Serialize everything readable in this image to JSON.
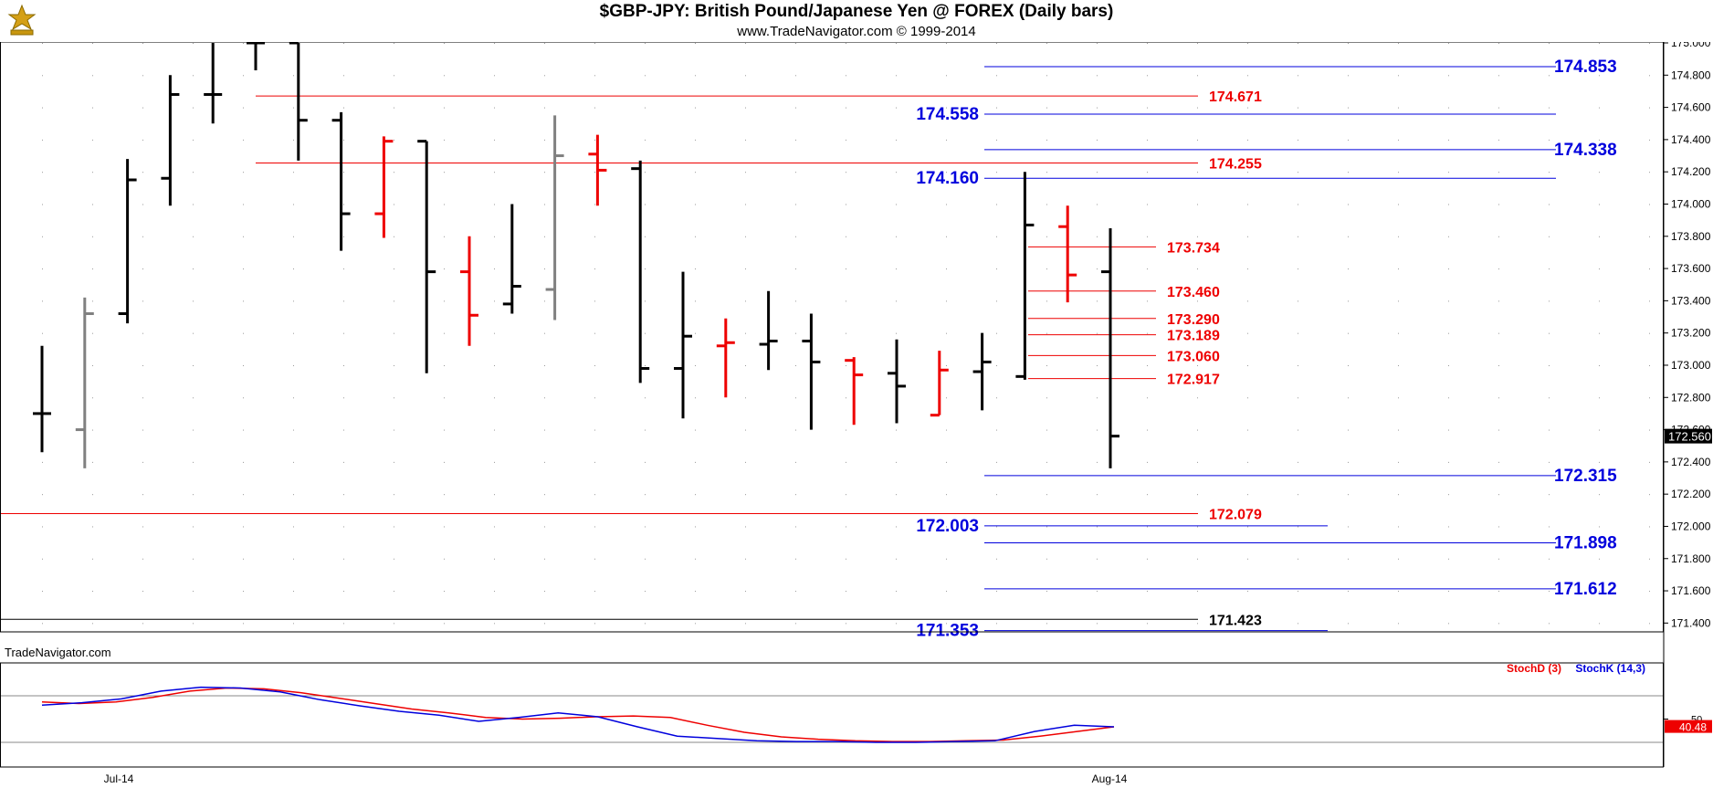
{
  "header": {
    "title": "$GBP-JPY:  British Pound/Japanese Yen @ FOREX  (Daily bars)",
    "subtitle": "www.TradeNavigator.com © 1999-2014"
  },
  "watermark": "TradeNavigator.com",
  "chart_data": {
    "type": "ohlc",
    "price_axis": {
      "min": 171.3,
      "max": 175.0,
      "ticks": [
        "175.000",
        "174.800",
        "174.600",
        "174.400",
        "174.200",
        "174.000",
        "173.800",
        "173.600",
        "173.400",
        "173.200",
        "173.000",
        "172.800",
        "172.600",
        "172.400",
        "172.200",
        "172.000",
        "171.800",
        "171.600",
        "171.400"
      ]
    },
    "last_price": "172.560",
    "x_labels": [
      {
        "label": "Jul-14",
        "bar": 2
      },
      {
        "label": "Aug-14",
        "bar": 26
      }
    ],
    "bars": [
      {
        "o": 172.7,
        "h": 173.12,
        "l": 172.46,
        "c": 172.7,
        "color": "#000000"
      },
      {
        "o": 172.6,
        "h": 173.42,
        "l": 172.36,
        "c": 173.32,
        "color": "#808080"
      },
      {
        "o": 173.32,
        "h": 174.28,
        "l": 173.26,
        "c": 174.15,
        "color": "#000000"
      },
      {
        "o": 174.16,
        "h": 174.8,
        "l": 173.99,
        "c": 174.68,
        "color": "#000000"
      },
      {
        "o": 174.68,
        "h": 175.05,
        "l": 174.5,
        "c": 174.68,
        "color": "#000000"
      },
      {
        "o": 175.0,
        "h": 175.1,
        "l": 174.83,
        "c": 175.0,
        "color": "#000000"
      },
      {
        "o": 175.0,
        "h": 175.05,
        "l": 174.27,
        "c": 174.52,
        "color": "#000000"
      },
      {
        "o": 174.52,
        "h": 174.57,
        "l": 173.71,
        "c": 173.94,
        "color": "#000000"
      },
      {
        "o": 173.94,
        "h": 174.42,
        "l": 173.79,
        "c": 174.39,
        "color": "#ee0000"
      },
      {
        "o": 174.39,
        "h": 174.39,
        "l": 172.95,
        "c": 173.58,
        "color": "#000000"
      },
      {
        "o": 173.58,
        "h": 173.8,
        "l": 173.12,
        "c": 173.31,
        "color": "#ee0000"
      },
      {
        "o": 173.38,
        "h": 174.0,
        "l": 173.32,
        "c": 173.49,
        "color": "#000000"
      },
      {
        "o": 173.47,
        "h": 174.55,
        "l": 173.28,
        "c": 174.3,
        "color": "#808080"
      },
      {
        "o": 174.31,
        "h": 174.43,
        "l": 173.99,
        "c": 174.21,
        "color": "#ee0000"
      },
      {
        "o": 174.22,
        "h": 174.27,
        "l": 172.89,
        "c": 172.98,
        "color": "#000000"
      },
      {
        "o": 172.98,
        "h": 173.58,
        "l": 172.67,
        "c": 173.18,
        "color": "#000000"
      },
      {
        "o": 173.12,
        "h": 173.29,
        "l": 172.8,
        "c": 173.14,
        "color": "#ee0000"
      },
      {
        "o": 173.13,
        "h": 173.46,
        "l": 172.97,
        "c": 173.15,
        "color": "#000000"
      },
      {
        "o": 173.15,
        "h": 173.32,
        "l": 172.6,
        "c": 173.02,
        "color": "#000000"
      },
      {
        "o": 173.03,
        "h": 173.05,
        "l": 172.63,
        "c": 172.94,
        "color": "#ee0000"
      },
      {
        "o": 172.95,
        "h": 173.16,
        "l": 172.64,
        "c": 172.87,
        "color": "#000000"
      },
      {
        "o": 172.69,
        "h": 173.09,
        "l": 172.69,
        "c": 172.97,
        "color": "#ee0000"
      },
      {
        "o": 172.96,
        "h": 173.2,
        "l": 172.72,
        "c": 173.02,
        "color": "#000000"
      },
      {
        "o": 172.93,
        "h": 174.2,
        "l": 172.91,
        "c": 173.87,
        "color": "#000000"
      },
      {
        "o": 173.86,
        "h": 173.99,
        "l": 173.39,
        "c": 173.56,
        "color": "#ee0000"
      },
      {
        "o": 173.58,
        "h": 173.85,
        "l": 172.36,
        "c": 172.56,
        "color": "#000000"
      }
    ],
    "levels": [
      {
        "price": 174.853,
        "label": "174.853",
        "color": "#0000dd",
        "x1": 1078,
        "x2": 1704,
        "label_side": "right",
        "label_x": 1702
      },
      {
        "price": 174.671,
        "label": "174.671",
        "color": "#ee0000",
        "x1": 280,
        "x2": 1312,
        "label_side": "right",
        "label_x": 1324
      },
      {
        "price": 174.558,
        "label": "174.558",
        "color": "#0000dd",
        "x1": 1078,
        "x2": 1704,
        "label_side": "left",
        "label_x": 1072
      },
      {
        "price": 174.338,
        "label": "174.338",
        "color": "#0000dd",
        "x1": 1078,
        "x2": 1704,
        "label_side": "right",
        "label_x": 1702
      },
      {
        "price": 174.255,
        "label": "174.255",
        "color": "#ee0000",
        "x1": 280,
        "x2": 1312,
        "label_side": "right",
        "label_x": 1324
      },
      {
        "price": 174.16,
        "label": "174.160",
        "color": "#0000dd",
        "x1": 1078,
        "x2": 1704,
        "label_side": "left",
        "label_x": 1072
      },
      {
        "price": 173.734,
        "label": "173.734",
        "color": "#ee0000",
        "x1": 1126,
        "x2": 1266,
        "label_side": "right",
        "label_x": 1278
      },
      {
        "price": 173.46,
        "label": "173.460",
        "color": "#ee0000",
        "x1": 1126,
        "x2": 1266,
        "label_side": "right",
        "label_x": 1278
      },
      {
        "price": 173.29,
        "label": "173.290",
        "color": "#ee0000",
        "x1": 1126,
        "x2": 1266,
        "label_side": "right",
        "label_x": 1278
      },
      {
        "price": 173.189,
        "label": "173.189",
        "color": "#ee0000",
        "x1": 1126,
        "x2": 1266,
        "label_side": "right",
        "label_x": 1278
      },
      {
        "price": 173.06,
        "label": "173.060",
        "color": "#ee0000",
        "x1": 1126,
        "x2": 1266,
        "label_side": "right",
        "label_x": 1278
      },
      {
        "price": 172.917,
        "label": "172.917",
        "color": "#ee0000",
        "x1": 1126,
        "x2": 1266,
        "label_side": "right",
        "label_x": 1278
      },
      {
        "price": 172.315,
        "label": "172.315",
        "color": "#0000dd",
        "x1": 1078,
        "x2": 1704,
        "label_side": "right",
        "label_x": 1702
      },
      {
        "price": 172.079,
        "label": "172.079",
        "color": "#ee0000",
        "x1": 0,
        "x2": 1312,
        "label_side": "right",
        "label_x": 1324
      },
      {
        "price": 172.003,
        "label": "172.003",
        "color": "#0000dd",
        "x1": 1078,
        "x2": 1454,
        "label_side": "left",
        "label_x": 1072
      },
      {
        "price": 171.898,
        "label": "171.898",
        "color": "#0000dd",
        "x1": 1078,
        "x2": 1704,
        "label_side": "right",
        "label_x": 1702
      },
      {
        "price": 171.612,
        "label": "171.612",
        "color": "#0000dd",
        "x1": 1078,
        "x2": 1704,
        "label_side": "right",
        "label_x": 1702
      },
      {
        "price": 171.423,
        "label": "171.423",
        "color": "#000000",
        "x1": 0,
        "x2": 1312,
        "label_side": "right",
        "label_x": 1324
      },
      {
        "price": 171.353,
        "label": "171.353",
        "color": "#0000dd",
        "x1": 1078,
        "x2": 1454,
        "label_side": "left",
        "label_x": 1072
      }
    ],
    "stochastic": {
      "range": [
        0,
        100
      ],
      "level_label": "50",
      "last_label": "40.48",
      "series": [
        {
          "name": "StochD (3)",
          "color": "#ee0000",
          "values": [
            72,
            70,
            72,
            78,
            86,
            90,
            89,
            84,
            77,
            70,
            63,
            58,
            52,
            50,
            51,
            53,
            54,
            52,
            42,
            33,
            27,
            24,
            22,
            21,
            21,
            22,
            23,
            28,
            34,
            40
          ]
        },
        {
          "name": "StochK (14,3)",
          "color": "#0000dd",
          "values": [
            68,
            71,
            76,
            86,
            91,
            90,
            85,
            75,
            67,
            60,
            55,
            47,
            52,
            58,
            53,
            40,
            28,
            25,
            22,
            21,
            21,
            20,
            20,
            21,
            22,
            34,
            42,
            40
          ]
        }
      ]
    }
  }
}
